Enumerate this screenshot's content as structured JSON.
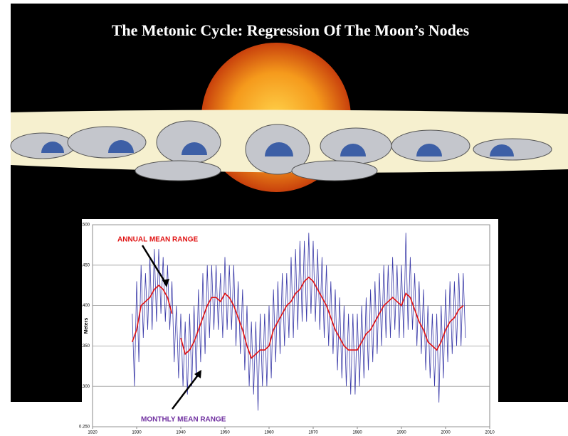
{
  "illustration": {
    "title": "The Metonic Cycle: Regression Of The Moon’s Nodes"
  },
  "chart_data": {
    "type": "line",
    "ylabel": "Meters",
    "xlim": [
      1920,
      2010
    ],
    "xticks": [
      1920,
      1930,
      1940,
      1950,
      1960,
      1970,
      1980,
      1990,
      2000,
      2010
    ],
    "ylim": [
      0.25,
      0.5
    ],
    "yticks": [
      {
        "value": 0.25,
        "label": "0.250"
      },
      {
        "value": 0.3,
        "label": "0.300"
      },
      {
        "value": 0.35,
        "label": "0.350"
      },
      {
        "value": 0.4,
        "label": "0.400"
      },
      {
        "value": 0.45,
        "label": "0.450"
      },
      {
        "value": 0.5,
        "label": "0.500"
      }
    ],
    "grid": true,
    "annotations": [
      {
        "text": "ANNUAL MEAN RANGE",
        "color": "#e01010"
      },
      {
        "text": "MONTHLY MEAN RANGE",
        "color": "#7030a0"
      }
    ],
    "series": [
      {
        "name": "MONTHLY MEAN RANGE",
        "color": "#3a3aa8",
        "x": [
          1929,
          1929.5,
          1930,
          1930.5,
          1931,
          1931.5,
          1932,
          1932.5,
          1933,
          1933.5,
          1934,
          1934.5,
          1935,
          1935.5,
          1936,
          1936.5,
          1937,
          1937.5,
          1938,
          1938.5,
          1939,
          1939.5,
          1940,
          1940.5,
          1941,
          1941.5,
          1942,
          1942.5,
          1943,
          1943.5,
          1944,
          1944.5,
          1945,
          1945.5,
          1946,
          1946.5,
          1947,
          1947.5,
          1948,
          1948.5,
          1949,
          1949.5,
          1950,
          1950.5,
          1951,
          1951.5,
          1952,
          1952.5,
          1953,
          1953.5,
          1954,
          1954.5,
          1955,
          1955.5,
          1956,
          1956.5,
          1957,
          1957.5,
          1958,
          1958.5,
          1959,
          1959.5,
          1960,
          1960.5,
          1961,
          1961.5,
          1962,
          1962.5,
          1963,
          1963.5,
          1964,
          1964.5,
          1965,
          1965.5,
          1966,
          1966.5,
          1967,
          1967.5,
          1968,
          1968.5,
          1969,
          1969.5,
          1970,
          1970.5,
          1971,
          1971.5,
          1972,
          1972.5,
          1973,
          1973.5,
          1974,
          1974.5,
          1975,
          1975.5,
          1976,
          1976.5,
          1977,
          1977.5,
          1978,
          1978.5,
          1979,
          1979.5,
          1980,
          1980.5,
          1981,
          1981.5,
          1982,
          1982.5,
          1983,
          1983.5,
          1984,
          1984.5,
          1985,
          1985.5,
          1986,
          1986.5,
          1987,
          1987.5,
          1988,
          1988.5,
          1989,
          1989.5,
          1990,
          1990.5,
          1991,
          1991.5,
          1992,
          1992.5,
          1993,
          1993.5,
          1994,
          1994.5,
          1995,
          1995.5,
          1996,
          1996.5,
          1997,
          1997.5,
          1998,
          1998.5,
          1999,
          1999.5,
          2000,
          2000.5,
          2001,
          2001.5,
          2002,
          2002.5,
          2003,
          2003.5,
          2004,
          2004.5
        ],
        "values": [
          0.39,
          0.3,
          0.43,
          0.33,
          0.45,
          0.36,
          0.44,
          0.37,
          0.46,
          0.37,
          0.47,
          0.38,
          0.47,
          0.39,
          0.46,
          0.38,
          0.45,
          0.37,
          0.43,
          0.33,
          0.4,
          0.31,
          0.39,
          0.3,
          0.38,
          0.29,
          0.39,
          0.3,
          0.4,
          0.31,
          0.42,
          0.33,
          0.44,
          0.34,
          0.45,
          0.36,
          0.45,
          0.37,
          0.45,
          0.37,
          0.44,
          0.36,
          0.46,
          0.37,
          0.45,
          0.37,
          0.45,
          0.35,
          0.43,
          0.34,
          0.42,
          0.32,
          0.4,
          0.3,
          0.38,
          0.29,
          0.38,
          0.27,
          0.39,
          0.3,
          0.39,
          0.3,
          0.4,
          0.31,
          0.42,
          0.33,
          0.43,
          0.34,
          0.44,
          0.35,
          0.44,
          0.36,
          0.46,
          0.36,
          0.47,
          0.37,
          0.48,
          0.38,
          0.48,
          0.38,
          0.49,
          0.39,
          0.48,
          0.38,
          0.47,
          0.37,
          0.46,
          0.36,
          0.45,
          0.35,
          0.43,
          0.34,
          0.42,
          0.32,
          0.41,
          0.31,
          0.4,
          0.3,
          0.39,
          0.29,
          0.39,
          0.29,
          0.39,
          0.3,
          0.4,
          0.31,
          0.41,
          0.32,
          0.42,
          0.33,
          0.43,
          0.34,
          0.44,
          0.35,
          0.45,
          0.36,
          0.45,
          0.36,
          0.46,
          0.37,
          0.45,
          0.36,
          0.45,
          0.36,
          0.49,
          0.37,
          0.46,
          0.37,
          0.44,
          0.35,
          0.43,
          0.34,
          0.42,
          0.32,
          0.4,
          0.31,
          0.39,
          0.3,
          0.39,
          0.28,
          0.4,
          0.31,
          0.42,
          0.33,
          0.43,
          0.34,
          0.43,
          0.35,
          0.44,
          0.35,
          0.44,
          0.36
        ]
      },
      {
        "name": "ANNUAL MEAN RANGE",
        "color": "#e01010",
        "x": [
          1929,
          1930,
          1931,
          1932,
          1933,
          1934,
          1935,
          1936,
          1937,
          1938,
          1939,
          1940,
          1941,
          1942,
          1943,
          1944,
          1945,
          1946,
          1947,
          1948,
          1949,
          1950,
          1951,
          1952,
          1953,
          1954,
          1955,
          1956,
          1957,
          1958,
          1959,
          1960,
          1961,
          1962,
          1963,
          1964,
          1965,
          1966,
          1967,
          1968,
          1969,
          1970,
          1971,
          1972,
          1973,
          1974,
          1975,
          1976,
          1977,
          1978,
          1979,
          1980,
          1981,
          1982,
          1983,
          1984,
          1985,
          1986,
          1987,
          1988,
          1989,
          1990,
          1991,
          1992,
          1993,
          1994,
          1995,
          1996,
          1997,
          1998,
          1999,
          2000,
          2001,
          2002,
          2003,
          2004
        ],
        "values": [
          0.355,
          0.37,
          0.4,
          0.405,
          0.41,
          0.42,
          0.425,
          0.42,
          0.41,
          0.39,
          null,
          0.36,
          0.34,
          0.345,
          0.355,
          0.37,
          0.385,
          0.4,
          0.41,
          0.41,
          0.405,
          0.415,
          0.41,
          0.4,
          0.385,
          0.37,
          0.35,
          0.335,
          0.34,
          0.345,
          0.345,
          0.35,
          0.37,
          0.38,
          0.39,
          0.4,
          0.405,
          0.415,
          0.42,
          0.43,
          0.435,
          0.43,
          0.42,
          0.41,
          0.4,
          0.385,
          0.37,
          0.36,
          0.35,
          0.345,
          0.345,
          0.345,
          0.355,
          0.365,
          0.37,
          0.38,
          0.39,
          0.4,
          0.405,
          0.41,
          0.405,
          0.4,
          0.415,
          0.41,
          0.395,
          0.38,
          0.37,
          0.355,
          0.35,
          0.345,
          0.355,
          0.37,
          0.38,
          0.385,
          0.395,
          0.4
        ]
      }
    ]
  }
}
